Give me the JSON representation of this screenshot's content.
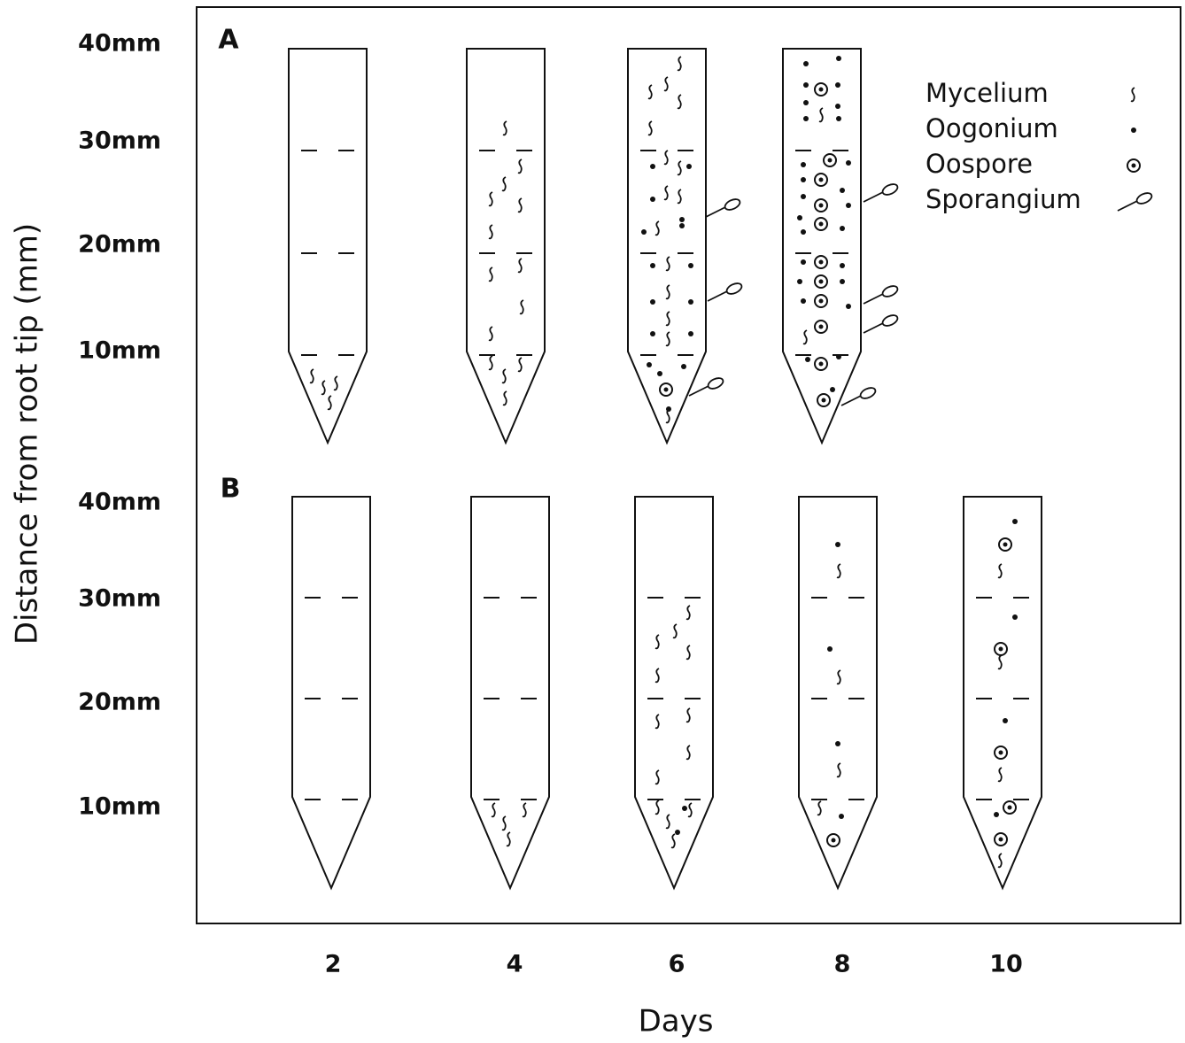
{
  "y_axis_title": "Distance from root tip (mm)",
  "panels": [
    {
      "label": "A",
      "distance_labels": [
        "40mm",
        "30mm",
        "20mm",
        "10mm"
      ]
    },
    {
      "label": "B",
      "distance_labels": [
        "40mm",
        "30mm",
        "20mm",
        "10mm"
      ]
    }
  ],
  "legend": [
    "Mycelium",
    "Oogonium",
    "Oospore",
    "Sporangium"
  ],
  "days": [
    "2",
    "4",
    "6",
    "8",
    "10"
  ],
  "x_axis_title": "Days"
}
